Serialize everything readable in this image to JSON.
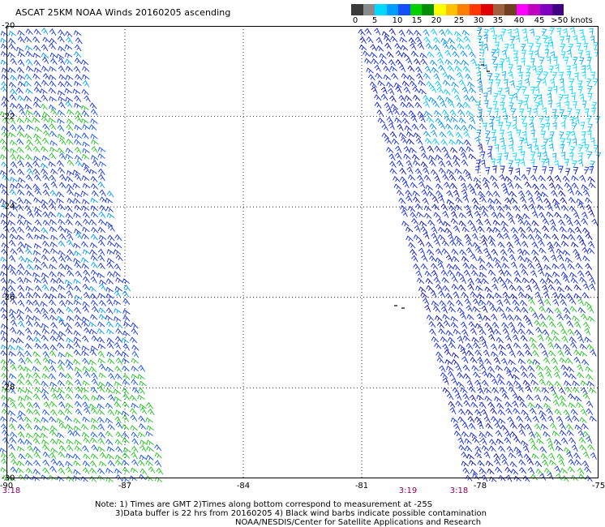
{
  "title": "ASCAT 25KM NOAA Winds 20160205 ascending",
  "colorbar": {
    "colors": [
      "#3a3a3a",
      "#8a8a8a",
      "#00d8ff",
      "#009cff",
      "#1450ff",
      "#00d000",
      "#009000",
      "#ffff00",
      "#ffc000",
      "#ff8000",
      "#ff3800",
      "#e00000",
      "#a06040",
      "#704020",
      "#ff00ff",
      "#c000c0",
      "#8000c0",
      "#400080"
    ],
    "labels": [
      "0",
      "5",
      "10",
      "15",
      "20",
      "25",
      "30",
      "35",
      "40",
      "45",
      ">50 knots"
    ]
  },
  "axes": {
    "lat_labels": [
      "-20",
      "-22",
      "-24",
      "-26",
      "-28",
      "-30"
    ],
    "lon_labels": [
      "-90",
      "-87",
      "-84",
      "-81",
      "-78",
      "-75"
    ]
  },
  "times": {
    "left": "3:18",
    "mid": "3:19",
    "right": "3:18"
  },
  "notes": {
    "line1": "Note: 1) Times are GMT 2)Times along bottom correspond to measurement at -25S",
    "line2": "3)Data buffer is 22 hrs from 20160205 4) Black wind barbs indicate possible contamination",
    "line3": "NOAA/NESDIS/Center for Satellite Applications and Research"
  },
  "map": {
    "lon_range": [
      -90,
      -75
    ],
    "lat_range": [
      -30,
      -20
    ],
    "grid": "dotted",
    "wind_speed_unit": "knots"
  }
}
